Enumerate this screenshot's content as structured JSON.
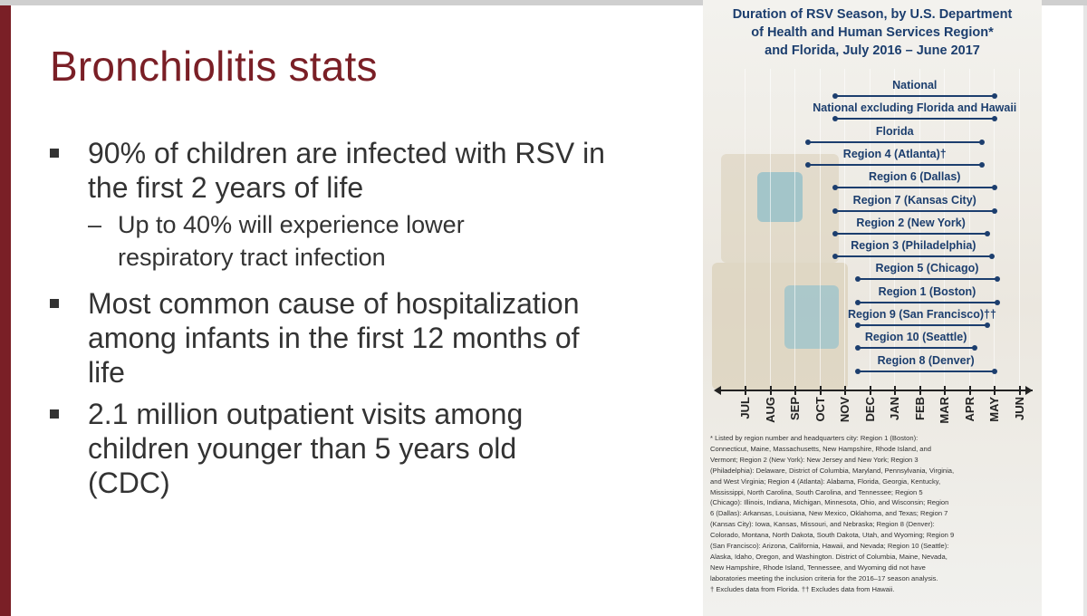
{
  "slide": {
    "title": "Bronchiolitis stats",
    "bullets": [
      {
        "lines": [
          "90% of children are infected with RSV in",
          "the first 2 years of life"
        ]
      },
      {
        "lines": [
          "Most common cause of hospitalization",
          "among infants in the first 12 months of",
          "life"
        ]
      },
      {
        "lines": [
          "2.1 million outpatient visits among",
          "children younger than 5 years old",
          "(CDC)"
        ]
      }
    ],
    "subbullet": {
      "dash": "–",
      "lines": [
        "Up to 40% will experience lower",
        "respiratory tract infection"
      ]
    },
    "colors": {
      "accent": "#7a1f26",
      "text": "#333333",
      "figure_text": "#1c3e6e"
    }
  },
  "figure": {
    "title_lines": [
      "Duration of RSV Season, by U.S. Department",
      "of Health and Human Services Region*",
      "and Florida, July 2016 – June 2017"
    ],
    "rows": [
      {
        "label": "National",
        "start": 4.1,
        "end": 10.5
      },
      {
        "label": "National excluding Florida and Hawaii",
        "start": 4.1,
        "end": 10.5
      },
      {
        "label": "Florida",
        "start": 3.0,
        "end": 10.0
      },
      {
        "label": "Region 4 (Atlanta)†",
        "start": 3.0,
        "end": 10.0
      },
      {
        "label": "Region 6 (Dallas)",
        "start": 4.1,
        "end": 10.5
      },
      {
        "label": "Region 7 (Kansas City)",
        "start": 4.1,
        "end": 10.5
      },
      {
        "label": "Region 2 (New York)",
        "start": 4.1,
        "end": 10.2
      },
      {
        "label": "Region 3 (Philadelphia)",
        "start": 4.1,
        "end": 10.4
      },
      {
        "label": "Region 5 (Chicago)",
        "start": 5.0,
        "end": 10.6
      },
      {
        "label": "Region 1 (Boston)",
        "start": 5.0,
        "end": 10.6
      },
      {
        "label": "Region 9 (San Francisco)††",
        "start": 5.0,
        "end": 10.2
      },
      {
        "label": "Region 10 (Seattle)",
        "start": 5.0,
        "end": 9.7
      },
      {
        "label": "Region 8 (Denver)",
        "start": 5.0,
        "end": 10.5
      }
    ],
    "months": [
      "JUL",
      "AUG",
      "SEP",
      "OCT",
      "NOV",
      "DEC",
      "JAN",
      "FEB",
      "MAR",
      "APR",
      "MAY",
      "JUN"
    ],
    "footnote_lines": [
      "* Listed by region number and headquarters city: Region 1 (Boston):",
      "Connecticut, Maine, Massachusetts, New Hampshire, Rhode Island, and",
      "Vermont; Region 2 (New York): New Jersey and New York; Region 3",
      "(Philadelphia): Delaware, District of Columbia, Maryland, Pennsylvania, Virginia,",
      "and West Virginia; Region 4 (Atlanta): Alabama, Florida, Georgia, Kentucky,",
      "Mississippi, North Carolina, South Carolina, and Tennessee; Region 5",
      "(Chicago): Illinois, Indiana, Michigan, Minnesota, Ohio, and Wisconsin; Region",
      "6 (Dallas): Arkansas, Louisiana, New Mexico, Oklahoma, and Texas; Region 7",
      "(Kansas City): Iowa, Kansas, Missouri, and Nebraska; Region 8 (Denver):",
      "Colorado, Montana, North Dakota, South Dakota, Utah, and Wyoming; Region 9",
      "(San Francisco): Arizona, California, Hawaii, and Nevada; Region 10 (Seattle):",
      "Alaska, Idaho, Oregon, and Washington. District of Columbia, Maine, Nevada,",
      "New Hampshire, Rhode Island, Tennessee, and Wyoming did not have",
      "laboratories meeting the inclusion criteria for the 2016–17 season analysis.",
      "† Excludes data from Florida. †† Excludes data from Hawaii."
    ]
  },
  "chart_data": {
    "type": "gantt",
    "title": "Duration of RSV Season, by U.S. Department of Health and Human Services Region* and Florida, July 2016 – June 2017",
    "x_categories": [
      "JUL",
      "AUG",
      "SEP",
      "OCT",
      "NOV",
      "DEC",
      "JAN",
      "FEB",
      "MAR",
      "APR",
      "MAY",
      "JUN"
    ],
    "series": [
      {
        "name": "National",
        "start_month_index": 4.1,
        "end_month_index": 10.5
      },
      {
        "name": "National excluding Florida and Hawaii",
        "start_month_index": 4.1,
        "end_month_index": 10.5
      },
      {
        "name": "Florida",
        "start_month_index": 3.0,
        "end_month_index": 10.0
      },
      {
        "name": "Region 4 (Atlanta)†",
        "start_month_index": 3.0,
        "end_month_index": 10.0
      },
      {
        "name": "Region 6 (Dallas)",
        "start_month_index": 4.1,
        "end_month_index": 10.5
      },
      {
        "name": "Region 7 (Kansas City)",
        "start_month_index": 4.1,
        "end_month_index": 10.5
      },
      {
        "name": "Region 2 (New York)",
        "start_month_index": 4.1,
        "end_month_index": 10.2
      },
      {
        "name": "Region 3 (Philadelphia)",
        "start_month_index": 4.1,
        "end_month_index": 10.4
      },
      {
        "name": "Region 5 (Chicago)",
        "start_month_index": 5.0,
        "end_month_index": 10.6
      },
      {
        "name": "Region 1 (Boston)",
        "start_month_index": 5.0,
        "end_month_index": 10.6
      },
      {
        "name": "Region 9 (San Francisco)††",
        "start_month_index": 5.0,
        "end_month_index": 10.2
      },
      {
        "name": "Region 10 (Seattle)",
        "start_month_index": 5.0,
        "end_month_index": 9.7
      },
      {
        "name": "Region 8 (Denver)",
        "start_month_index": 5.0,
        "end_month_index": 10.5
      }
    ]
  }
}
